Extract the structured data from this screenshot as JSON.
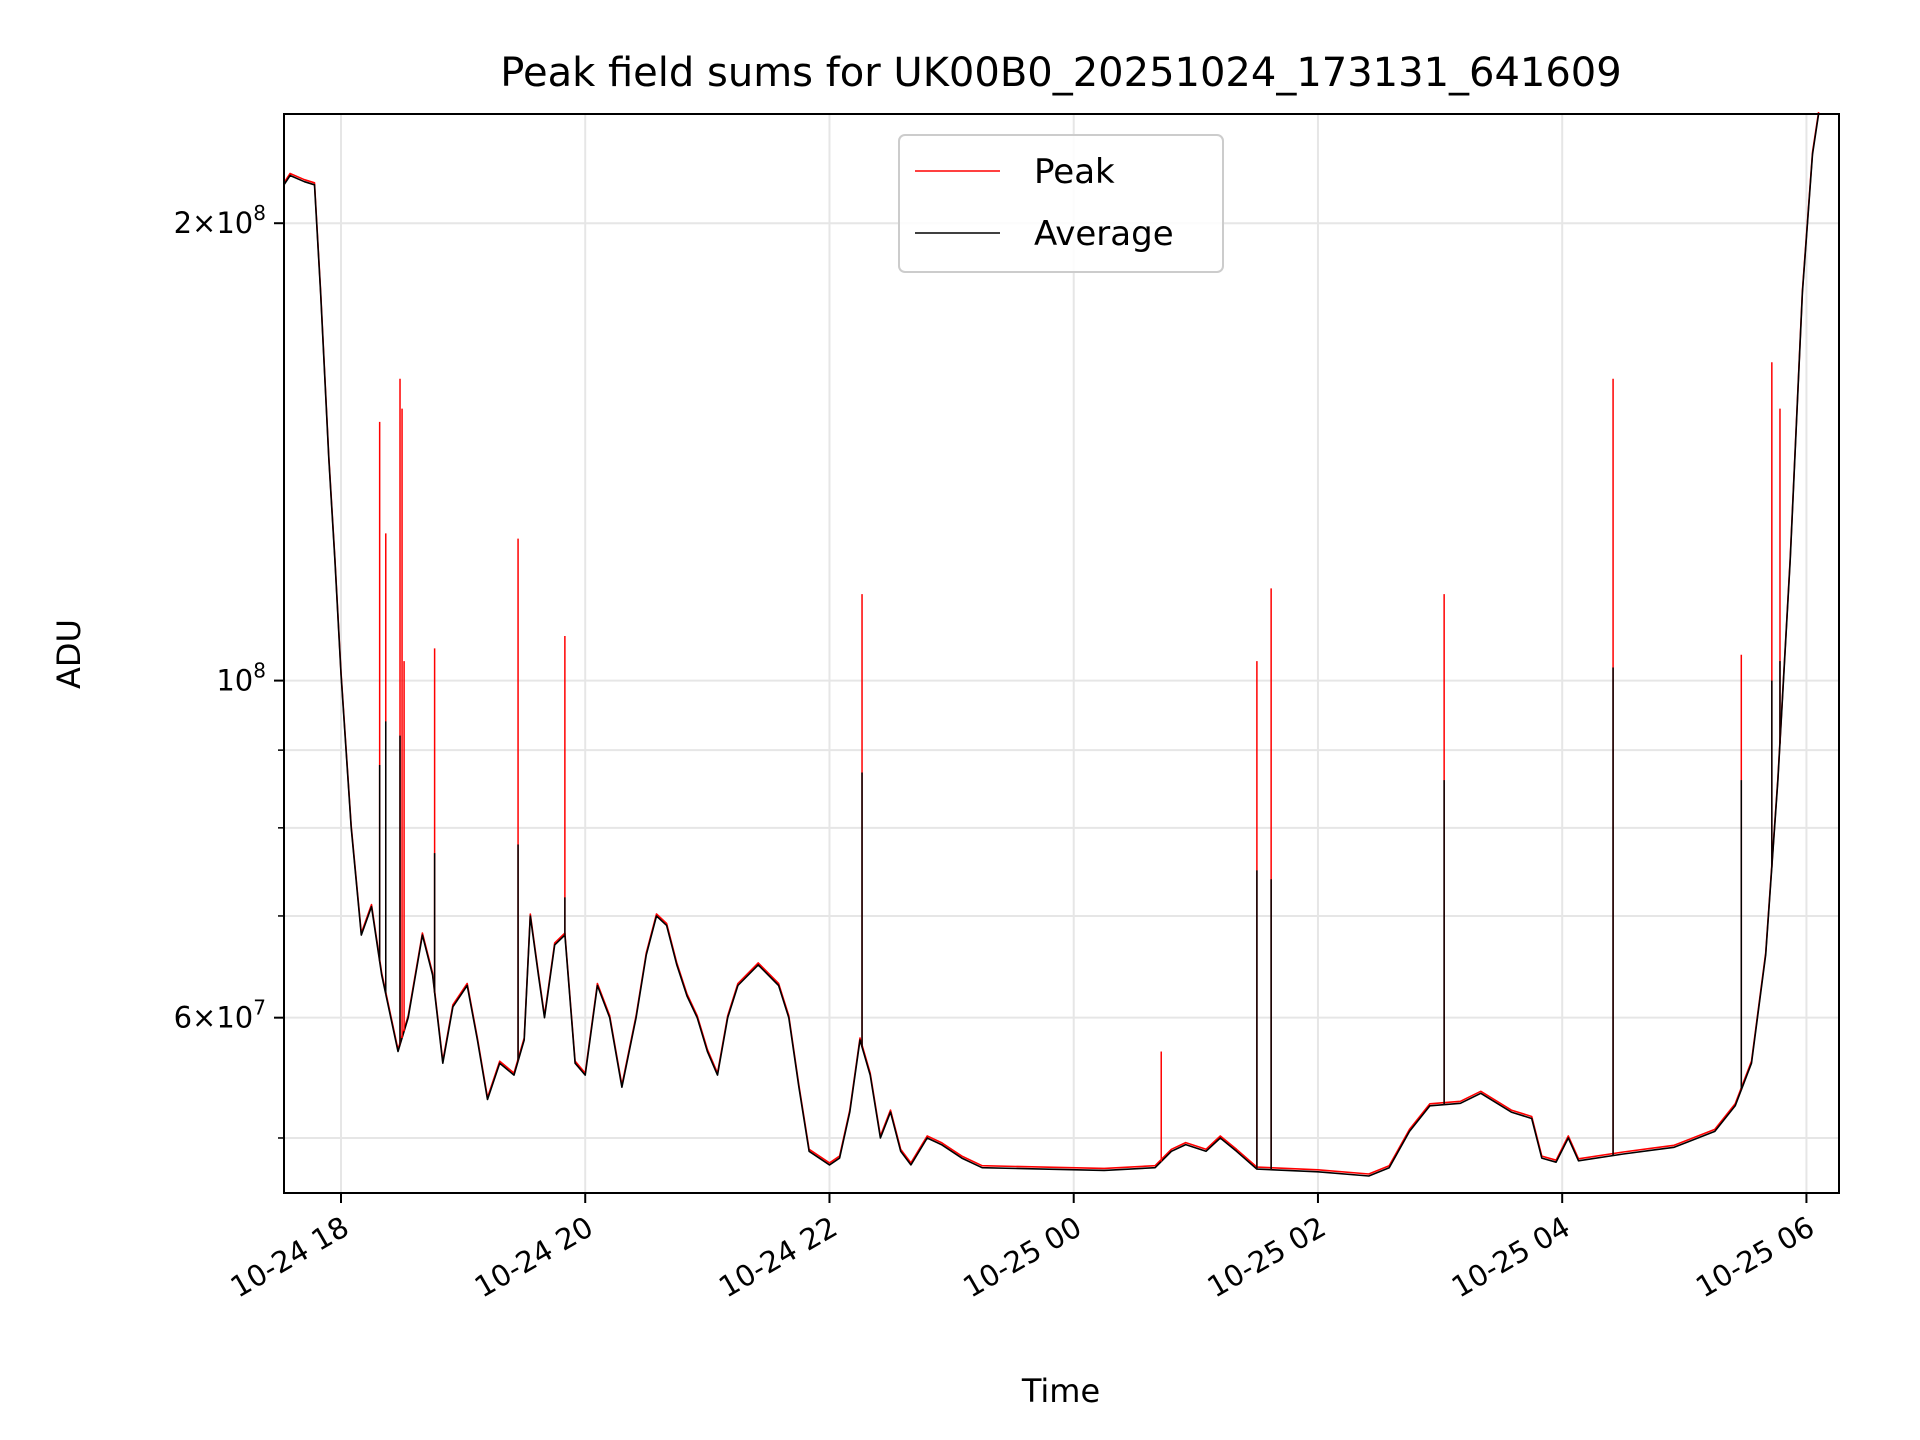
{
  "chart_data": {
    "type": "line",
    "title": "Peak field sums for UK00B0_20251024_173131_641609",
    "xlabel": "Time",
    "ylabel": "ADU",
    "yscale": "log",
    "xlim": [
      "2025-10-24 17:32",
      "2025-10-25 06:16"
    ],
    "ylim": [
      46000000,
      236000000
    ],
    "grid": true,
    "legend_position": "top-center",
    "x_ticks": [
      {
        "t": "2025-10-24 18:00",
        "label": "10-24 18"
      },
      {
        "t": "2025-10-24 20:00",
        "label": "10-24 20"
      },
      {
        "t": "2025-10-24 22:00",
        "label": "10-24 22"
      },
      {
        "t": "2025-10-25 00:00",
        "label": "10-25 00"
      },
      {
        "t": "2025-10-25 02:00",
        "label": "10-25 02"
      },
      {
        "t": "2025-10-25 04:00",
        "label": "10-25 04"
      },
      {
        "t": "2025-10-25 06:00",
        "label": "10-25 06"
      }
    ],
    "y_ticks": [
      {
        "v": 60000000,
        "mant": "6",
        "exp": "7"
      },
      {
        "v": 100000000,
        "mant": "",
        "exp": "8"
      },
      {
        "v": 200000000,
        "mant": "2",
        "exp": "8"
      }
    ],
    "y_minor_ticks": [
      50000000,
      70000000,
      80000000,
      90000000
    ],
    "series": [
      {
        "name": "Average",
        "color": "#000000",
        "points": [
          [
            "2025-10-24 17:32",
            212000000
          ],
          [
            "2025-10-24 17:35",
            215000000
          ],
          [
            "2025-10-24 17:42",
            213000000
          ],
          [
            "2025-10-24 17:47",
            212000000
          ],
          [
            "2025-10-24 17:50",
            180000000
          ],
          [
            "2025-10-24 17:54",
            140000000
          ],
          [
            "2025-10-24 17:57",
            120000000
          ],
          [
            "2025-10-24 18:00",
            101000000
          ],
          [
            "2025-10-24 18:05",
            80000000
          ],
          [
            "2025-10-24 18:10",
            68000000
          ],
          [
            "2025-10-24 18:15",
            71000000
          ],
          [
            "2025-10-24 18:20",
            64000000
          ],
          [
            "2025-10-24 18:28",
            57000000
          ],
          [
            "2025-10-24 18:33",
            60000000
          ],
          [
            "2025-10-24 18:40",
            68000000
          ],
          [
            "2025-10-24 18:45",
            64000000
          ],
          [
            "2025-10-24 18:50",
            56000000
          ],
          [
            "2025-10-24 18:55",
            61000000
          ],
          [
            "2025-10-24 19:02",
            63000000
          ],
          [
            "2025-10-24 19:07",
            58000000
          ],
          [
            "2025-10-24 19:12",
            53000000
          ],
          [
            "2025-10-24 19:18",
            56000000
          ],
          [
            "2025-10-24 19:25",
            55000000
          ],
          [
            "2025-10-24 19:30",
            58000000
          ],
          [
            "2025-10-24 19:33",
            70000000
          ],
          [
            "2025-10-24 19:37",
            64000000
          ],
          [
            "2025-10-24 19:40",
            60000000
          ],
          [
            "2025-10-24 19:45",
            67000000
          ],
          [
            "2025-10-24 19:50",
            68000000
          ],
          [
            "2025-10-24 19:55",
            56000000
          ],
          [
            "2025-10-24 20:00",
            55000000
          ],
          [
            "2025-10-24 20:06",
            63000000
          ],
          [
            "2025-10-24 20:12",
            60000000
          ],
          [
            "2025-10-24 20:18",
            54000000
          ],
          [
            "2025-10-24 20:25",
            60000000
          ],
          [
            "2025-10-24 20:30",
            66000000
          ],
          [
            "2025-10-24 20:35",
            70000000
          ],
          [
            "2025-10-24 20:40",
            69000000
          ],
          [
            "2025-10-24 20:45",
            65000000
          ],
          [
            "2025-10-24 20:50",
            62000000
          ],
          [
            "2025-10-24 20:55",
            60000000
          ],
          [
            "2025-10-24 21:00",
            57000000
          ],
          [
            "2025-10-24 21:05",
            55000000
          ],
          [
            "2025-10-24 21:10",
            60000000
          ],
          [
            "2025-10-24 21:15",
            63000000
          ],
          [
            "2025-10-24 21:25",
            65000000
          ],
          [
            "2025-10-24 21:35",
            63000000
          ],
          [
            "2025-10-24 21:40",
            60000000
          ],
          [
            "2025-10-24 21:45",
            54000000
          ],
          [
            "2025-10-24 21:50",
            49000000
          ],
          [
            "2025-10-24 22:00",
            48000000
          ],
          [
            "2025-10-24 22:05",
            48500000
          ],
          [
            "2025-10-24 22:10",
            52000000
          ],
          [
            "2025-10-24 22:15",
            58000000
          ],
          [
            "2025-10-24 22:20",
            55000000
          ],
          [
            "2025-10-24 22:25",
            50000000
          ],
          [
            "2025-10-24 22:30",
            52000000
          ],
          [
            "2025-10-24 22:35",
            49000000
          ],
          [
            "2025-10-24 22:40",
            48000000
          ],
          [
            "2025-10-24 22:48",
            50000000
          ],
          [
            "2025-10-24 22:55",
            49500000
          ],
          [
            "2025-10-24 23:05",
            48500000
          ],
          [
            "2025-10-24 23:15",
            47800000
          ],
          [
            "2025-10-24 23:45",
            47700000
          ],
          [
            "2025-10-25 00:15",
            47600000
          ],
          [
            "2025-10-25 00:40",
            47800000
          ],
          [
            "2025-10-25 00:48",
            49000000
          ],
          [
            "2025-10-25 00:55",
            49500000
          ],
          [
            "2025-10-25 01:05",
            49000000
          ],
          [
            "2025-10-25 01:12",
            50000000
          ],
          [
            "2025-10-25 01:20",
            49000000
          ],
          [
            "2025-10-25 01:30",
            47700000
          ],
          [
            "2025-10-25 02:00",
            47500000
          ],
          [
            "2025-10-25 02:25",
            47200000
          ],
          [
            "2025-10-25 02:35",
            47800000
          ],
          [
            "2025-10-25 02:45",
            50500000
          ],
          [
            "2025-10-25 02:55",
            52500000
          ],
          [
            "2025-10-25 03:10",
            52700000
          ],
          [
            "2025-10-25 03:20",
            53500000
          ],
          [
            "2025-10-25 03:35",
            52000000
          ],
          [
            "2025-10-25 03:45",
            51500000
          ],
          [
            "2025-10-25 03:50",
            48500000
          ],
          [
            "2025-10-25 03:57",
            48200000
          ],
          [
            "2025-10-25 04:03",
            50000000
          ],
          [
            "2025-10-25 04:08",
            48300000
          ],
          [
            "2025-10-25 04:30",
            48800000
          ],
          [
            "2025-10-25 04:55",
            49300000
          ],
          [
            "2025-10-25 05:15",
            50500000
          ],
          [
            "2025-10-25 05:25",
            52500000
          ],
          [
            "2025-10-25 05:33",
            56000000
          ],
          [
            "2025-10-25 05:40",
            66000000
          ],
          [
            "2025-10-25 05:46",
            86000000
          ],
          [
            "2025-10-25 05:52",
            120000000
          ],
          [
            "2025-10-25 05:58",
            180000000
          ],
          [
            "2025-10-25 06:03",
            222000000
          ],
          [
            "2025-10-25 06:06",
            236000000
          ]
        ],
        "spikes": [
          [
            "2025-10-24 18:19",
            88000000
          ],
          [
            "2025-10-24 18:22",
            94000000
          ],
          [
            "2025-10-24 18:29",
            92000000
          ],
          [
            "2025-10-24 18:46",
            77000000
          ],
          [
            "2025-10-24 19:27",
            78000000
          ],
          [
            "2025-10-24 19:50",
            72000000
          ],
          [
            "2025-10-24 22:16",
            87000000
          ],
          [
            "2025-10-25 01:30",
            75000000
          ],
          [
            "2025-10-25 01:37",
            74000000
          ],
          [
            "2025-10-25 03:02",
            86000000
          ],
          [
            "2025-10-25 04:25",
            102000000
          ],
          [
            "2025-10-25 05:28",
            86000000
          ],
          [
            "2025-10-25 05:43",
            100000000
          ],
          [
            "2025-10-25 05:47",
            103000000
          ]
        ]
      },
      {
        "name": "Peak",
        "color": "#ff0000",
        "points": [],
        "spikes": [
          [
            "2025-10-24 18:19",
            148000000
          ],
          [
            "2025-10-24 18:22",
            125000000
          ],
          [
            "2025-10-24 18:29",
            158000000
          ],
          [
            "2025-10-24 18:30",
            151000000
          ],
          [
            "2025-10-24 18:31",
            103000000
          ],
          [
            "2025-10-24 18:46",
            105000000
          ],
          [
            "2025-10-24 19:27",
            124000000
          ],
          [
            "2025-10-24 19:50",
            107000000
          ],
          [
            "2025-10-24 22:16",
            114000000
          ],
          [
            "2025-10-25 00:43",
            57000000
          ],
          [
            "2025-10-25 01:30",
            103000000
          ],
          [
            "2025-10-25 01:37",
            115000000
          ],
          [
            "2025-10-25 03:02",
            114000000
          ],
          [
            "2025-10-25 04:25",
            158000000
          ],
          [
            "2025-10-25 05:28",
            104000000
          ],
          [
            "2025-10-25 05:43",
            162000000
          ],
          [
            "2025-10-25 05:47",
            151000000
          ]
        ]
      }
    ]
  }
}
